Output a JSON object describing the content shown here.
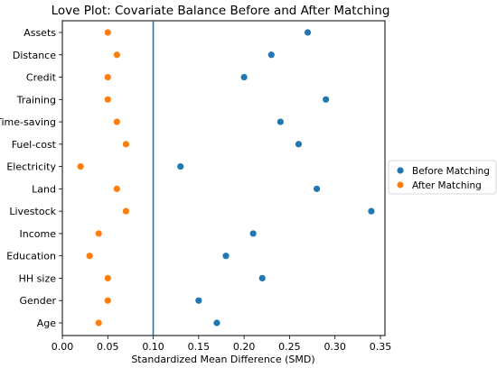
{
  "chart_data": {
    "type": "scatter",
    "title": "Love Plot: Covariate Balance Before and After Matching",
    "xlabel": "Standardized Mean Difference (SMD)",
    "ylabel": "",
    "xlim": [
      0.0,
      0.355
    ],
    "xticks": [
      "0.00",
      "0.05",
      "0.10",
      "0.15",
      "0.20",
      "0.25",
      "0.30",
      "0.35"
    ],
    "xtick_values": [
      0.0,
      0.05,
      0.1,
      0.15,
      0.2,
      0.25,
      0.3,
      0.35
    ],
    "categories": [
      "Assets",
      "Distance",
      "Credit",
      "Training",
      "Time-saving",
      "Fuel-cost",
      "Electricity",
      "Land",
      "Livestock",
      "Income",
      "Education",
      "HH size",
      "Gender",
      "Age"
    ],
    "reference_line": 0.1,
    "grid": false,
    "legend_position": "outside-right",
    "series": [
      {
        "name": "Before Matching",
        "color": "#1f77b4",
        "values": [
          0.27,
          0.23,
          0.2,
          0.29,
          0.24,
          0.26,
          0.13,
          0.28,
          0.34,
          0.21,
          0.18,
          0.22,
          0.15,
          0.17
        ]
      },
      {
        "name": "After Matching",
        "color": "#ff7f0e",
        "values": [
          0.05,
          0.06,
          0.05,
          0.05,
          0.06,
          0.07,
          0.02,
          0.06,
          0.07,
          0.04,
          0.03,
          0.05,
          0.05,
          0.04
        ]
      }
    ]
  }
}
